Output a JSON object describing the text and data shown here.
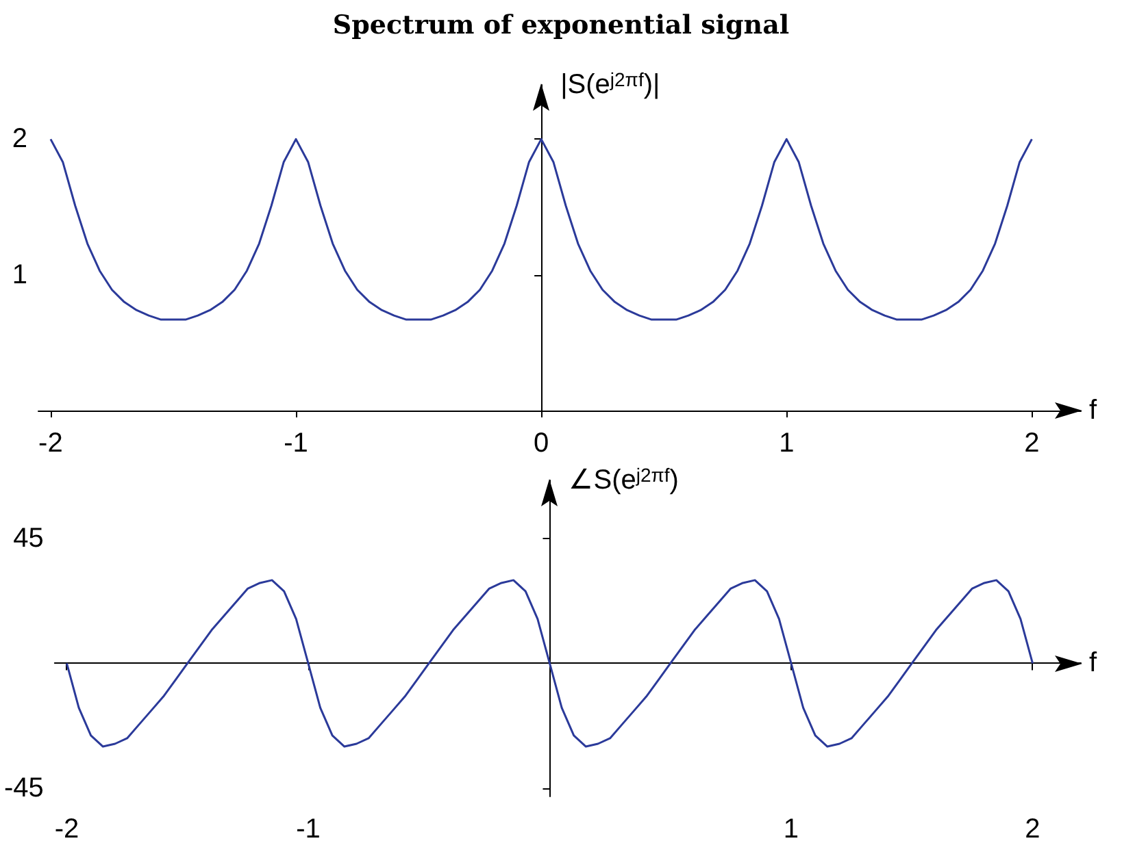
{
  "chart_data": [
    {
      "type": "line",
      "title": "Spectrum of exponential signal",
      "xlabel": "f",
      "ylabel": "|S(e$^{j2πf}$)|",
      "color": "#2b3a9a",
      "x": [
        -2,
        -1.95,
        -1.9,
        -1.85,
        -1.8,
        -1.75,
        -1.7,
        -1.65,
        -1.6,
        -1.55,
        -1.5,
        -1.45,
        -1.4,
        -1.35,
        -1.3,
        -1.25,
        -1.2,
        -1.15,
        -1.1,
        -1.05,
        -1,
        -0.95,
        -0.9,
        -0.85,
        -0.8,
        -0.75,
        -0.7,
        -0.65,
        -0.6,
        -0.55,
        -0.5,
        -0.45,
        -0.4,
        -0.35,
        -0.3,
        -0.25,
        -0.2,
        -0.15,
        -0.1,
        -0.05,
        0,
        0.05,
        0.1,
        0.15,
        0.2,
        0.25,
        0.3,
        0.35,
        0.4,
        0.45,
        0.5,
        0.55,
        0.6,
        0.65,
        0.7,
        0.75,
        0.8,
        0.85,
        0.9,
        0.95,
        1,
        1.05,
        1.1,
        1.15,
        1.2,
        1.25,
        1.3,
        1.35,
        1.4,
        1.45,
        1.5,
        1.55,
        1.6,
        1.65,
        1.7,
        1.75,
        1.8,
        1.85,
        1.9,
        1.95,
        2
      ],
      "values": [
        2,
        1.83,
        1.51,
        1.23,
        1.03,
        0.89,
        0.8,
        0.74,
        0.7,
        0.67,
        0.67,
        0.67,
        0.7,
        0.74,
        0.8,
        0.89,
        1.03,
        1.23,
        1.51,
        1.83,
        2,
        1.83,
        1.51,
        1.23,
        1.03,
        0.89,
        0.8,
        0.74,
        0.7,
        0.67,
        0.67,
        0.67,
        0.7,
        0.74,
        0.8,
        0.89,
        1.03,
        1.23,
        1.51,
        1.83,
        2,
        1.83,
        1.51,
        1.23,
        1.03,
        0.89,
        0.8,
        0.74,
        0.7,
        0.67,
        0.67,
        0.67,
        0.7,
        0.74,
        0.8,
        0.89,
        1.03,
        1.23,
        1.51,
        1.83,
        2,
        1.83,
        1.51,
        1.23,
        1.03,
        0.89,
        0.8,
        0.74,
        0.7,
        0.67,
        0.67,
        0.67,
        0.7,
        0.74,
        0.8,
        0.89,
        1.03,
        1.23,
        1.51,
        1.83,
        2
      ],
      "xlim": [
        -2.05,
        2.2
      ],
      "ylim": [
        0,
        2.4
      ],
      "xticks": [
        -2,
        -1,
        0,
        1,
        2
      ],
      "yticks": [
        1,
        2
      ]
    },
    {
      "type": "line",
      "xlabel": "f",
      "ylabel": "∠S(e$^{j2πf}$)",
      "color": "#2b3a9a",
      "x": [
        -2,
        -1.95,
        -1.9,
        -1.85,
        -1.8,
        -1.75,
        -1.7,
        -1.65,
        -1.6,
        -1.55,
        -1.5,
        -1.45,
        -1.4,
        -1.35,
        -1.3,
        -1.25,
        -1.2,
        -1.15,
        -1.1,
        -1.05,
        -1,
        -0.95,
        -0.9,
        -0.85,
        -0.8,
        -0.75,
        -0.7,
        -0.65,
        -0.6,
        -0.55,
        -0.5,
        -0.45,
        -0.4,
        -0.35,
        -0.3,
        -0.25,
        -0.2,
        -0.15,
        -0.1,
        -0.05,
        0,
        0.05,
        0.1,
        0.15,
        0.2,
        0.25,
        0.3,
        0.35,
        0.4,
        0.45,
        0.5,
        0.55,
        0.6,
        0.65,
        0.7,
        0.75,
        0.8,
        0.85,
        0.9,
        0.95,
        1,
        1.05,
        1.1,
        1.15,
        1.2,
        1.25,
        1.3,
        1.35,
        1.4,
        1.45,
        1.5,
        1.55,
        1.6,
        1.65,
        1.7,
        1.75,
        1.8,
        1.85,
        1.9,
        1.95,
        2
      ],
      "values": [
        0,
        -16,
        -26,
        -30,
        -29,
        -27,
        -22,
        -17,
        -12,
        -6,
        0,
        6,
        12,
        17,
        22,
        27,
        29,
        30,
        26,
        16,
        0,
        -16,
        -26,
        -30,
        -29,
        -27,
        -22,
        -17,
        -12,
        -6,
        0,
        6,
        12,
        17,
        22,
        27,
        29,
        30,
        26,
        16,
        0,
        -16,
        -26,
        -30,
        -29,
        -27,
        -22,
        -17,
        -12,
        -6,
        0,
        6,
        12,
        17,
        22,
        27,
        29,
        30,
        26,
        16,
        0,
        -16,
        -26,
        -30,
        -29,
        -27,
        -22,
        -17,
        -12,
        -6,
        0,
        6,
        12,
        17,
        22,
        27,
        29,
        30,
        26,
        16,
        0
      ],
      "xlim": [
        -2.05,
        2.2
      ],
      "ylim": [
        -48,
        66
      ],
      "xticks": [
        -2,
        -1,
        1,
        2
      ],
      "yticks": [
        45,
        -45
      ]
    }
  ]
}
